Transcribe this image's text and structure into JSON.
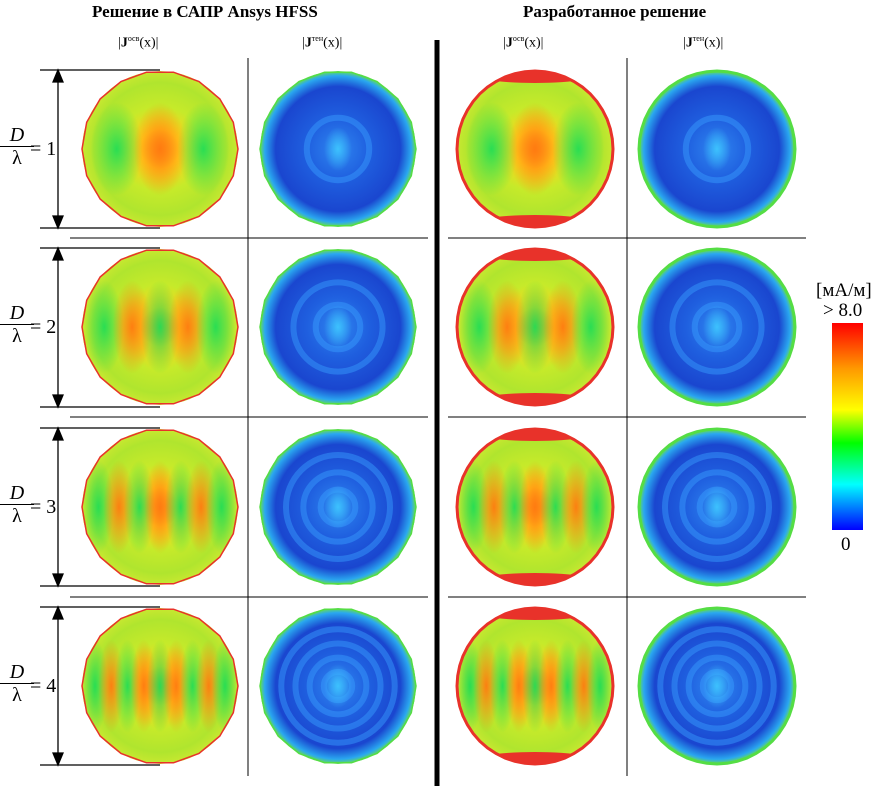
{
  "headers": {
    "left_group": "Решение в САПР Ansys HFSS",
    "right_group": "Разработанное решение",
    "col_labels": [
      {
        "vec": "J",
        "sup": "осв",
        "arg": "(x)"
      },
      {
        "vec": "J",
        "sup": "тен",
        "arg": "(x)"
      },
      {
        "vec": "J",
        "sup": "осв",
        "arg": "(x)"
      },
      {
        "vec": "J",
        "sup": "тен",
        "arg": "(x)"
      }
    ]
  },
  "rows": [
    {
      "numerator": "D",
      "denominator": "λ",
      "value": "= 1"
    },
    {
      "numerator": "D",
      "denominator": "λ",
      "value": "= 2"
    },
    {
      "numerator": "D",
      "denominator": "λ",
      "value": "= 3"
    },
    {
      "numerator": "D",
      "denominator": "λ",
      "value": "= 4"
    }
  ],
  "colorbar": {
    "unit": "[мА/м]",
    "max_label": "> 8.0",
    "min_label": "0",
    "colors": [
      "#ff0000",
      "#ff8800",
      "#ffff00",
      "#00ff00",
      "#00ffff",
      "#0000ff"
    ]
  },
  "field_colors": {
    "lit_base": "#b8e62e",
    "lit_hot": "#ff8c1a",
    "lit_edge": "#e8322a",
    "shadow_base": "#1e4fd8",
    "shadow_light": "#3aa0ff",
    "shadow_edge": "#55dd44"
  }
}
